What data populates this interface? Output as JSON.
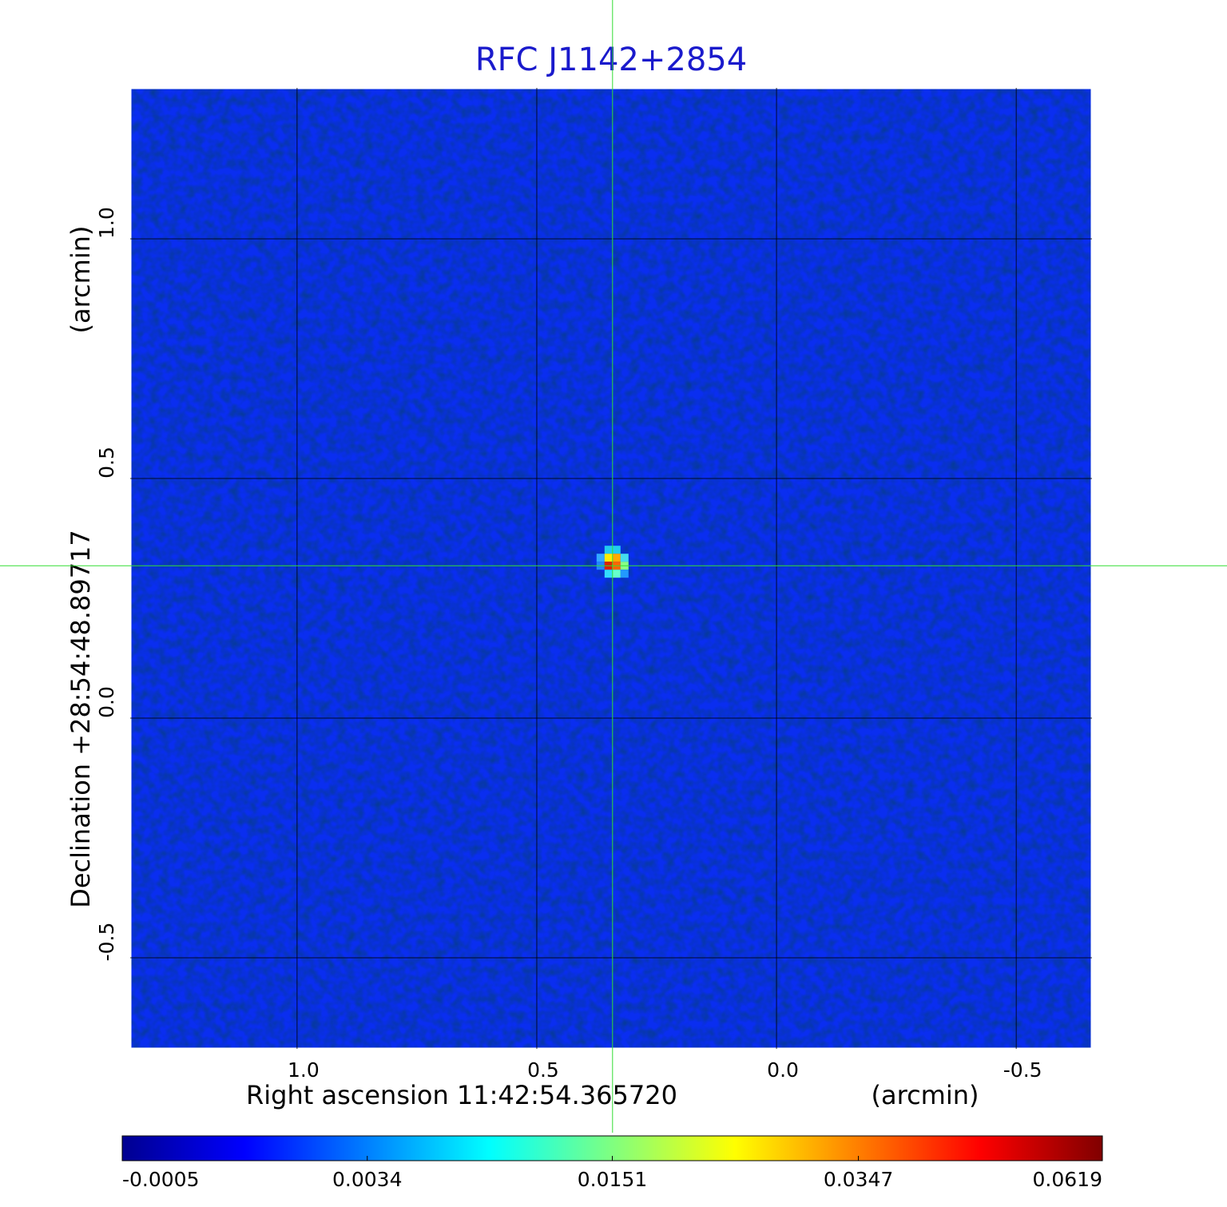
{
  "chart_data": {
    "type": "image",
    "title": "RFC J1142+2854",
    "x_label": "Right ascension  11:42:54.365720",
    "x_unit": "(arcmin)",
    "y_label": "Declination  +28:54:48.89717",
    "y_unit": "(arcmin)",
    "xlim": [
      1.348,
      -0.658
    ],
    "ylim": [
      -0.69,
      1.315
    ],
    "xticks": [
      {
        "value": 1,
        "label": "1.0"
      },
      0.5,
      {
        "value": 0,
        "label": "0.0"
      },
      -0.5
    ],
    "yticks": [
      {
        "value": 1,
        "label": "1.0"
      },
      0.5,
      {
        "value": 0,
        "label": "0.0"
      },
      -0.5
    ],
    "grid": true,
    "crosshair": {
      "x": 0.342,
      "y": 0.318,
      "color": "#33dd33"
    },
    "colormap": "jet",
    "colorbar_scale": "sqrt",
    "colorbar_lim": [
      -0.0005,
      0.0619
    ],
    "colorbar_ticks": [
      -0.0005,
      0.0034,
      0.0151,
      0.0347,
      0.0619
    ]
  }
}
